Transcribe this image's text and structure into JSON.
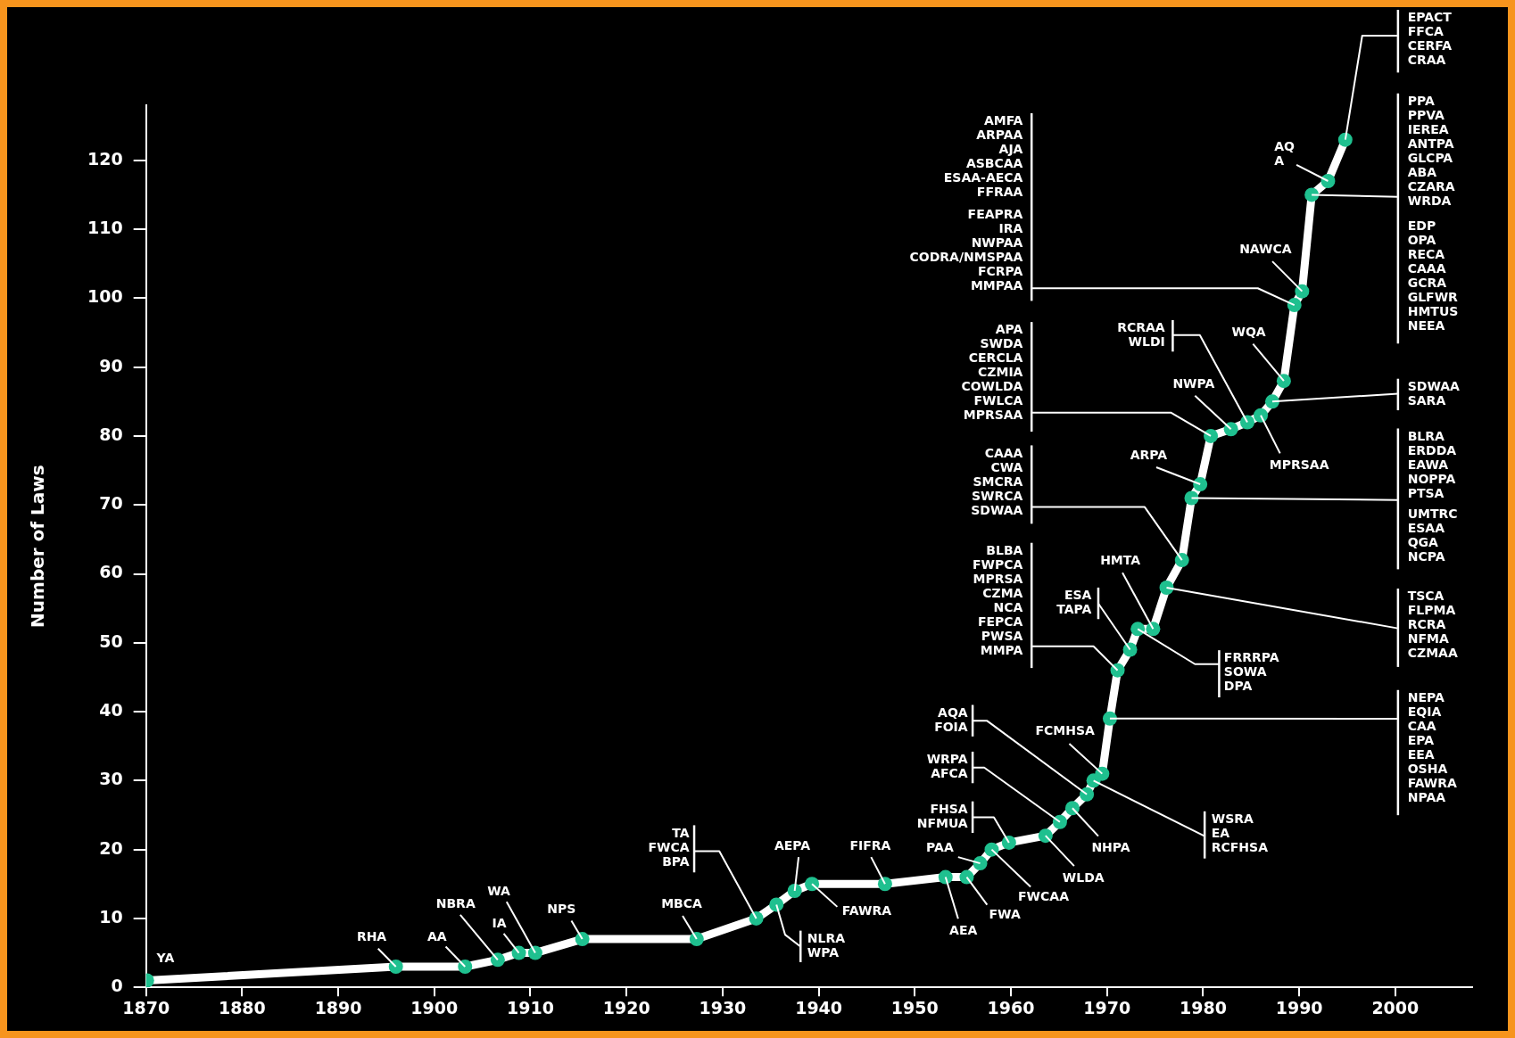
{
  "chart_data": {
    "type": "line",
    "ylabel": "Number of Laws",
    "xlim": [
      1870,
      2008
    ],
    "xticks": [
      1870,
      1880,
      1890,
      1900,
      1910,
      1920,
      1930,
      1940,
      1950,
      1960,
      1970,
      1980,
      1990,
      2000
    ],
    "ylim": [
      0,
      128
    ],
    "yticks": [
      0,
      10,
      20,
      30,
      40,
      50,
      60,
      70,
      80,
      90,
      100,
      110,
      120
    ],
    "grid": false,
    "legend": false,
    "marker": "circle",
    "line_style": "solid",
    "series": [
      {
        "color": "#ffffff",
        "colors": [
          "#1fc08f",
          "#1fc08f",
          "#1fc08f",
          "#1fc08f",
          "#1fc08f",
          "#1fc08f",
          "#1fc08f",
          "#1fc08f",
          "#1fc08f",
          "#1fc08f",
          "#1fc08f",
          "#1fc08f",
          "#1fc08f",
          "#1fc08f",
          "#1fc08f",
          "#1fc08f",
          "#1fc08f",
          "#1fc08f",
          "#1fc08f",
          "#1fc08f",
          "#1fc08f",
          "#1fc08f",
          "#1fc08f",
          "#1fc08f",
          "#1fc08f",
          "#1fc08f",
          "#1fc08f",
          "#1fc08f",
          "#1fc08f",
          "#1fc08f",
          "#1fc08f",
          "#1fc08f",
          "#1fc08f",
          "#1fc08f",
          "#1fc08f",
          "#1fc08f",
          "#1fc08f",
          "#1fc08f",
          "#1fc08f",
          "#1fc08f",
          "#1fc08f",
          "#1fc08f",
          "#1fc08f",
          "#1fc08f"
        ],
        "x": [
          1870.1,
          1896,
          1903.2,
          1906.6,
          1908.8,
          1910.5,
          1915.4,
          1927.3,
          1933.5,
          1935.6,
          1937.5,
          1939.3,
          1946.9,
          1953.2,
          1955.4,
          1956.8,
          1958,
          1959.8,
          1963.6,
          1965.1,
          1966.4,
          1967.9,
          1968.6,
          1969.5,
          1970.3,
          1971.1,
          1972.4,
          1973.2,
          1974.8,
          1976.2,
          1977.8,
          1978.8,
          1979.7,
          1980.8,
          1982.9,
          1984.6,
          1986,
          1987.2,
          1988.4,
          1989.5,
          1990.3,
          1991.3,
          1993,
          1994.8
        ],
        "values": [
          1,
          3,
          3,
          4,
          5,
          5,
          7,
          7,
          10,
          12,
          14,
          15,
          15,
          16,
          16,
          18,
          20,
          21,
          22,
          24,
          26,
          28,
          30,
          31,
          39,
          46,
          49,
          52,
          52,
          58,
          62,
          71,
          73,
          80,
          81,
          82,
          83,
          85,
          88,
          99,
          101,
          115,
          117,
          123
        ]
      }
    ],
    "annotations": [
      {
        "text": "YA",
        "x": 1870.1,
        "y": 1
      },
      {
        "text": "RHA",
        "x": 1896,
        "y": 3
      },
      {
        "text": "AA",
        "x": 1903.2,
        "y": 3
      },
      {
        "text": "NBRA",
        "x": 1906.6,
        "y": 4
      },
      {
        "text": "IA",
        "x": 1908.8,
        "y": 5
      },
      {
        "text": "WA",
        "x": 1910.5,
        "y": 5
      },
      {
        "text": "NPS",
        "x": 1915.4,
        "y": 7
      },
      {
        "text": "MBCA",
        "x": 1927.3,
        "y": 7
      },
      {
        "text": "TA\nFWCA\nBPA",
        "x": 1933.5,
        "y": 10
      },
      {
        "text": "NLRA\nWPA",
        "x": 1935.6,
        "y": 12
      },
      {
        "text": "AEPA",
        "x": 1937.5,
        "y": 14
      },
      {
        "text": "FAWRA",
        "x": 1939.3,
        "y": 15
      },
      {
        "text": "FIFRA",
        "x": 1946.9,
        "y": 15
      },
      {
        "text": "AEA",
        "x": 1953.2,
        "y": 16
      },
      {
        "text": "FWA",
        "x": 1955.4,
        "y": 16
      },
      {
        "text": "PAA",
        "x": 1956.8,
        "y": 18
      },
      {
        "text": "FWCAA",
        "x": 1958,
        "y": 20
      },
      {
        "text": "FHSA\nNFMUA",
        "x": 1959.8,
        "y": 21
      },
      {
        "text": "WLDA",
        "x": 1963.6,
        "y": 22
      },
      {
        "text": "WRPA\nAFCA",
        "x": 1965.1,
        "y": 24
      },
      {
        "text": "NHPA",
        "x": 1966.4,
        "y": 26
      },
      {
        "text": "AQA\nFOIA",
        "x": 1967.9,
        "y": 28
      },
      {
        "text": "WSRA\nEA\nRCFHSA",
        "x": 1968.6,
        "y": 30
      },
      {
        "text": "FCMHSA",
        "x": 1969.5,
        "y": 31
      },
      {
        "text": "NEPA\nEQIA\nCAA\nEPA\nEEA\nOSHA\nFAWRA\nNPAA",
        "x": 1970.3,
        "y": 39
      },
      {
        "text": "BLBA\nFWPCA\nMPRSA\nCZMA\nNCA\nFEPCA\nPWSA\nMMPA",
        "x": 1971.1,
        "y": 46
      },
      {
        "text": "ESA\nTAPA",
        "x": 1972.4,
        "y": 49
      },
      {
        "text": "HMTA",
        "x": 1974.8,
        "y": 52
      },
      {
        "text": "FRRRPA\nSOWA\nDPA",
        "x": 1973.2,
        "y": 52
      },
      {
        "text": "TSCA\nFLPMA\nRCRA\nNFMA\nCZMAA",
        "x": 1976.2,
        "y": 58
      },
      {
        "text": "CAAA\nCWA\nSMCRA\nSWRCA\nSDWAA",
        "x": 1977.8,
        "y": 62
      },
      {
        "text": "BLRA\nERDDA\nEAWA\nNOPPA\nPTSA",
        "x": 1978.8,
        "y": 71
      },
      {
        "text": "UMTRC\nESAA\nQGA\nNCPA",
        "x": 1978.8,
        "y": 71
      },
      {
        "text": "ARPA",
        "x": 1979.7,
        "y": 73
      },
      {
        "text": "APA\nSWDA\nCERCLA\nCZMIA\nCOWLDA\nFWLCA\nMPRSAA",
        "x": 1980.8,
        "y": 80
      },
      {
        "text": "NWPA",
        "x": 1982.9,
        "y": 81
      },
      {
        "text": "RCRAA\nWLDI",
        "x": 1984.6,
        "y": 82
      },
      {
        "text": "MPRSAA",
        "x": 1986,
        "y": 83
      },
      {
        "text": "SDWAA\nSARA",
        "x": 1987.2,
        "y": 85
      },
      {
        "text": "WQA",
        "x": 1988.4,
        "y": 88
      },
      "AMFA\nARPAA\nAJA\nASBCAA\nESAA-AECA\nFFRAA",
      {
        "text": "FEAPRA\nIRA\nNWPAA\nCODRA/NMSPAA\nFCRPA\nMMPAA",
        "x": 1989.5,
        "y": 99
      },
      {
        "text": "NAWCA",
        "x": 1990.3,
        "y": 101
      },
      {
        "text": "PPA\nPPVA\nIEREA\nANTPA\nGLCPA\nABA\nCZARA\nWRDA",
        "x": 1991.3,
        "y": 115
      },
      "EDP\nOPA\nRECA\nCAAA\nGCRA\nGLFWR\nHMTUS\nNEEA",
      {
        "text": "AQ\nA",
        "x": 1993,
        "y": 117
      },
      {
        "text": "EPACT\nFFCA\nCERFA\nCRAA",
        "x": 1994.8,
        "y": 123
      }
    ]
  }
}
